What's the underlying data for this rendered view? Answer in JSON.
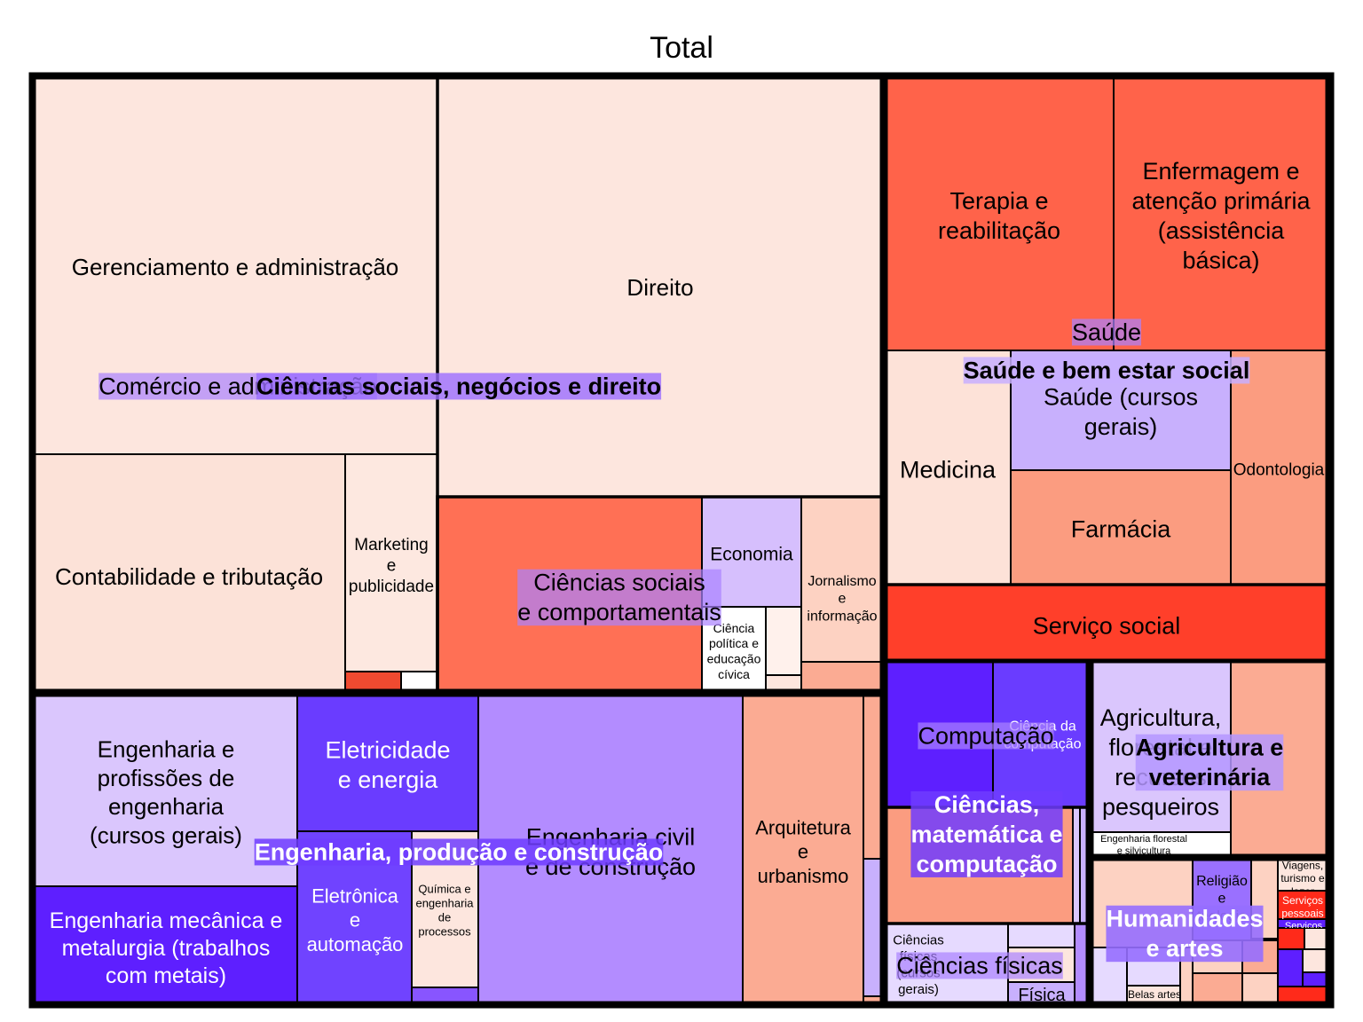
{
  "chart_data": {
    "type": "treemap",
    "title": "Total",
    "colors": {
      "blue_strong": "#5a1aff",
      "neutral": "#ffffff",
      "red_strong": "#ff2a1a"
    },
    "groups": [
      {
        "label": "Ciências sociais, negócios e direito",
        "label_lines": [
          "Ciências sociais, negócios e direito"
        ]
      },
      {
        "label": "Saúde e bem estar social",
        "label_lines": [
          "Saúde e bem estar social"
        ]
      },
      {
        "label": "Engenharia, produção e construção",
        "label_lines": [
          "Engenharia, produção e construção"
        ]
      },
      {
        "label": "Ciências, matemática e computação",
        "label_lines": [
          "Ciências,",
          "matemática e",
          "computação"
        ]
      },
      {
        "label": "Agricultura e veterinária",
        "label_lines": [
          "Agricultura e",
          "veterinária"
        ]
      },
      {
        "label": "Humanidades e artes",
        "label_lines": [
          "Humanidades",
          "e artes"
        ]
      }
    ],
    "subgroups": [
      {
        "label": "Comércio e administração",
        "label_lines": [
          "Comércio e administração"
        ]
      },
      {
        "label": "Ciências sociais e comportamentais",
        "label_lines": [
          "Ciências sociais",
          "e comportamentais"
        ]
      },
      {
        "label": "Saúde",
        "label_lines": [
          "Saúde"
        ]
      },
      {
        "label": "Computação",
        "label_lines": [
          "Computação"
        ]
      },
      {
        "label": "Ciências físicas",
        "label_lines": [
          "Ciências físicas"
        ]
      }
    ],
    "leaves": [
      {
        "lines": [
          "Gerenciamento e administração"
        ]
      },
      {
        "lines": [
          "Direito"
        ]
      },
      {
        "lines": [
          "Contabilidade e tributação"
        ]
      },
      {
        "lines": [
          "Marketing",
          "e",
          "publicidade"
        ]
      },
      {
        "lines": [
          "Economia"
        ]
      },
      {
        "lines": [
          "Ciência",
          "política e",
          "educação",
          "cívica"
        ]
      },
      {
        "lines": [
          "Jornalismo",
          "e",
          "informação"
        ]
      },
      {
        "lines": [
          "Terapia e",
          "reabilitação"
        ]
      },
      {
        "lines": [
          "Enfermagem e",
          "atenção primária",
          "(assistência",
          "básica)"
        ]
      },
      {
        "lines": [
          "Medicina"
        ]
      },
      {
        "lines": [
          "Saúde (cursos",
          "gerais)"
        ]
      },
      {
        "lines": [
          "Odontologia"
        ]
      },
      {
        "lines": [
          "Farmácia"
        ]
      },
      {
        "lines": [
          "Serviço social"
        ]
      },
      {
        "lines": [
          "Engenharia e",
          "profissões de",
          "engenharia",
          "(cursos gerais)"
        ]
      },
      {
        "lines": [
          "Eletricidade",
          "e energia"
        ]
      },
      {
        "lines": [
          "Engenharia mecânica e",
          "metalurgia (trabalhos",
          "com metais)"
        ]
      },
      {
        "lines": [
          "Eletrônica",
          "e",
          "automação"
        ]
      },
      {
        "lines": [
          "Química e",
          "engenharia",
          "de",
          "processos"
        ]
      },
      {
        "lines": [
          "Engenharia civil",
          "e de construção"
        ]
      },
      {
        "lines": [
          "Arquitetura",
          "e",
          "urbanismo"
        ]
      },
      {
        "lines": [
          "Ciência da",
          "computação"
        ]
      },
      {
        "lines": [
          "Ciências",
          "físicas",
          "(cursos",
          "gerais)"
        ]
      },
      {
        "lines": [
          "Física"
        ]
      },
      {
        "lines": [
          "Agricultura,",
          "florestal e",
          "recursos",
          "pesqueiros"
        ]
      },
      {
        "lines": [
          "Engenharia florestal",
          "e silvicultura"
        ]
      },
      {
        "lines": [
          "Religião",
          "e",
          "teologia"
        ]
      },
      {
        "lines": [
          "Belas artes"
        ]
      },
      {
        "lines": [
          "Viagens,",
          "turismo e",
          "lazer"
        ]
      },
      {
        "lines": [
          "Serviços",
          "pessoais"
        ]
      },
      {
        "lines": [
          "Serviços"
        ]
      }
    ]
  }
}
